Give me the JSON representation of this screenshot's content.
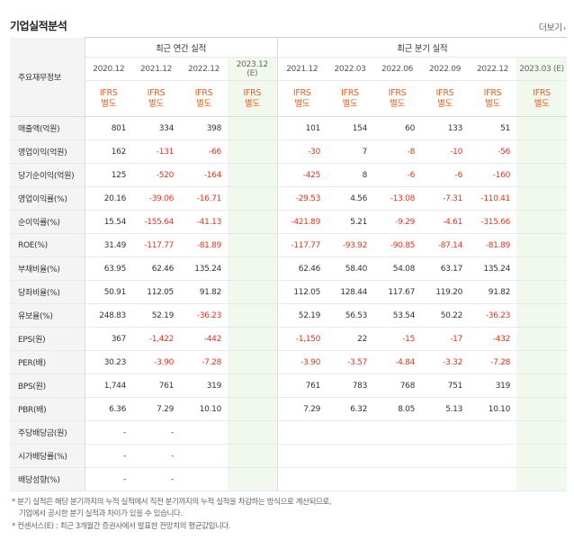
{
  "header": {
    "title": "기업실적분석",
    "more_label": "더보기",
    "more_icon": "chevron-right-icon"
  },
  "table": {
    "corner_label": "주요재무정보",
    "annual_group_title": "최근 연간 실적",
    "quarter_group_title": "최근 분기 실적",
    "annual_dates": [
      "2020.12",
      "2021.12",
      "2022.12",
      "2023.12\n(E)"
    ],
    "quarter_dates": [
      "2021.12",
      "2022.03",
      "2022.06",
      "2022.09",
      "2022.12",
      "2023.03 (E)"
    ],
    "ifrs_label_line1": "IFRS",
    "ifrs_label_line2": "별도",
    "rows": [
      {
        "label": "매출액(억원)",
        "values": [
          "801",
          "334",
          "398",
          "",
          "101",
          "154",
          "60",
          "133",
          "51",
          ""
        ]
      },
      {
        "label": "영업이익(억원)",
        "values": [
          "162",
          "-131",
          "-66",
          "",
          "-30",
          "7",
          "-8",
          "-10",
          "-56",
          ""
        ]
      },
      {
        "label": "당기순이익(억원)",
        "values": [
          "125",
          "-520",
          "-164",
          "",
          "-425",
          "8",
          "-6",
          "-6",
          "-160",
          ""
        ]
      },
      {
        "label": "영업이익률(%)",
        "values": [
          "20.16",
          "-39.06",
          "-16.71",
          "",
          "-29.53",
          "4.56",
          "-13.08",
          "-7.31",
          "-110.41",
          ""
        ]
      },
      {
        "label": "순이익률(%)",
        "values": [
          "15.54",
          "-155.64",
          "-41.13",
          "",
          "-421.89",
          "5.21",
          "-9.29",
          "-4.61",
          "-315.66",
          ""
        ]
      },
      {
        "label": "ROE(%)",
        "values": [
          "31.49",
          "-117.77",
          "-81.89",
          "",
          "-117.77",
          "-93.92",
          "-90.85",
          "-87.14",
          "-81.89",
          ""
        ]
      },
      {
        "label": "부채비율(%)",
        "values": [
          "63.95",
          "62.46",
          "135.24",
          "",
          "62.46",
          "58.40",
          "54.08",
          "63.17",
          "135.24",
          ""
        ]
      },
      {
        "label": "당좌비율(%)",
        "values": [
          "50.91",
          "112.05",
          "91.82",
          "",
          "112.05",
          "128.44",
          "117.67",
          "119.20",
          "91.82",
          ""
        ]
      },
      {
        "label": "유보율(%)",
        "values": [
          "248.83",
          "52.19",
          "-36.23",
          "",
          "52.19",
          "56.53",
          "53.54",
          "50.22",
          "-36.23",
          ""
        ]
      },
      {
        "label": "EPS(원)",
        "values": [
          "367",
          "-1,422",
          "-442",
          "",
          "-1,150",
          "22",
          "-15",
          "-17",
          "-432",
          ""
        ]
      },
      {
        "label": "PER(배)",
        "values": [
          "30.23",
          "-3.90",
          "-7.28",
          "",
          "-3.90",
          "-3.57",
          "-4.84",
          "-3.32",
          "-7.28",
          ""
        ]
      },
      {
        "label": "BPS(원)",
        "values": [
          "1,744",
          "761",
          "319",
          "",
          "761",
          "783",
          "768",
          "751",
          "319",
          ""
        ]
      },
      {
        "label": "PBR(배)",
        "values": [
          "6.36",
          "7.29",
          "10.10",
          "",
          "7.29",
          "6.32",
          "8.05",
          "5.13",
          "10.10",
          ""
        ]
      },
      {
        "label": "주당배당금(원)",
        "values": [
          "-",
          "-",
          "",
          "",
          "",
          "",
          "",
          "",
          "",
          ""
        ]
      },
      {
        "label": "시가배당률(%)",
        "values": [
          "-",
          "-",
          "",
          "",
          "",
          "",
          "",
          "",
          "",
          ""
        ]
      },
      {
        "label": "배당성향(%)",
        "values": [
          "-",
          "-",
          "",
          "",
          "",
          "",
          "",
          "",
          "",
          ""
        ]
      }
    ]
  },
  "footnotes": [
    "* 분기 실적은 해당 분기까지의 누적 실적에서 직전 분기까지의 누적 실적을 차감하는 방식으로 계산되므로,",
    "기업에서 공시한 분기 실적과 차이가 있을 수 있습니다.",
    "* 컨센서스(E) : 최근 3개월간 증권사에서 발표한 전망치의 평균값입니다."
  ],
  "colors": {
    "negative": "#e0341c",
    "ifrs": "#e8601c",
    "estimate_bg": "#f1f8ee",
    "rowhead_bg": "#f4f4f4"
  }
}
